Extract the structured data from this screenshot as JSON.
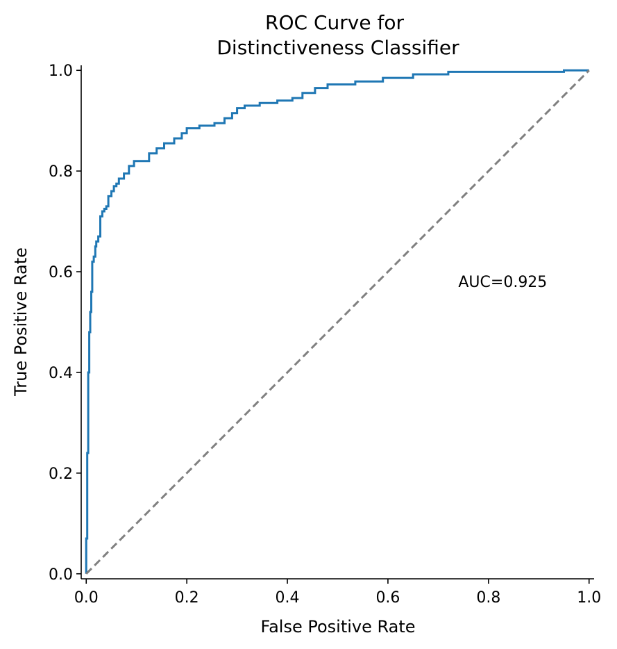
{
  "chart_data": {
    "type": "line",
    "title_lines": [
      "ROC Curve for",
      "Distinctiveness Classifier"
    ],
    "xlabel": "False Positive Rate",
    "ylabel": "True Positive Rate",
    "xlim": [
      -0.01,
      1.01
    ],
    "ylim": [
      -0.01,
      1.01
    ],
    "xticks": [
      0.0,
      0.2,
      0.4,
      0.6,
      0.8,
      1.0
    ],
    "yticks": [
      0.0,
      0.2,
      0.4,
      0.6,
      0.8,
      1.0
    ],
    "xtick_labels": [
      "0.0",
      "0.2",
      "0.4",
      "0.6",
      "0.8",
      "1.0"
    ],
    "ytick_labels": [
      "0.0",
      "0.2",
      "0.4",
      "0.6",
      "0.8",
      "1.0"
    ],
    "grid": false,
    "annotation": {
      "text": "AUC=0.925",
      "x": 0.74,
      "y": 0.57
    },
    "series": [
      {
        "kind": "step",
        "color": "#1f77b4",
        "x": [
          0.0,
          0.0,
          0.002,
          0.002,
          0.004,
          0.004,
          0.006,
          0.006,
          0.008,
          0.008,
          0.01,
          0.01,
          0.012,
          0.012,
          0.015,
          0.015,
          0.018,
          0.018,
          0.02,
          0.02,
          0.024,
          0.024,
          0.028,
          0.028,
          0.032,
          0.032,
          0.036,
          0.036,
          0.04,
          0.04,
          0.044,
          0.044,
          0.05,
          0.05,
          0.055,
          0.055,
          0.06,
          0.06,
          0.065,
          0.065,
          0.075,
          0.075,
          0.085,
          0.085,
          0.095,
          0.095,
          0.125,
          0.125,
          0.14,
          0.14,
          0.155,
          0.155,
          0.175,
          0.175,
          0.19,
          0.19,
          0.2,
          0.2,
          0.225,
          0.225,
          0.255,
          0.255,
          0.275,
          0.275,
          0.29,
          0.29,
          0.3,
          0.3,
          0.315,
          0.315,
          0.345,
          0.345,
          0.38,
          0.38,
          0.41,
          0.41,
          0.43,
          0.43,
          0.455,
          0.455,
          0.48,
          0.48,
          0.535,
          0.535,
          0.59,
          0.59,
          0.65,
          0.65,
          0.72,
          0.72,
          0.95,
          0.95,
          1.0
        ],
        "y": [
          0.0,
          0.07,
          0.07,
          0.24,
          0.24,
          0.4,
          0.4,
          0.48,
          0.48,
          0.52,
          0.52,
          0.56,
          0.56,
          0.62,
          0.62,
          0.63,
          0.63,
          0.65,
          0.65,
          0.66,
          0.66,
          0.67,
          0.67,
          0.71,
          0.71,
          0.72,
          0.72,
          0.725,
          0.725,
          0.73,
          0.73,
          0.75,
          0.75,
          0.76,
          0.76,
          0.77,
          0.77,
          0.775,
          0.775,
          0.785,
          0.785,
          0.795,
          0.795,
          0.81,
          0.81,
          0.82,
          0.82,
          0.835,
          0.835,
          0.845,
          0.845,
          0.855,
          0.855,
          0.865,
          0.865,
          0.875,
          0.875,
          0.885,
          0.885,
          0.89,
          0.89,
          0.895,
          0.895,
          0.905,
          0.905,
          0.915,
          0.915,
          0.925,
          0.925,
          0.93,
          0.93,
          0.935,
          0.935,
          0.94,
          0.94,
          0.945,
          0.945,
          0.955,
          0.955,
          0.965,
          0.965,
          0.972,
          0.972,
          0.978,
          0.978,
          0.985,
          0.985,
          0.992,
          0.992,
          0.997,
          0.997,
          1.0,
          1.0
        ]
      },
      {
        "kind": "diagonal",
        "color": "#808080",
        "dashed": true,
        "x": [
          0.0,
          1.0
        ],
        "y": [
          0.0,
          1.0
        ]
      }
    ]
  }
}
